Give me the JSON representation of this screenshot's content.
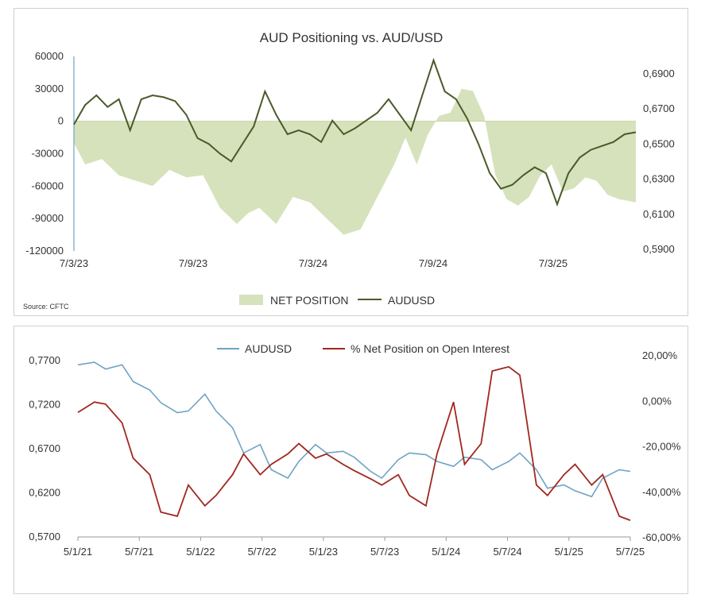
{
  "charts": {
    "top": {
      "title": "AUD Positioning vs. AUD/USD",
      "source": "Source: CFTC",
      "colors": {
        "net": "#d6e2bb",
        "audusd": "#4a5a2a"
      },
      "left_ticks": [
        "60000",
        "30000",
        "0",
        "-30000",
        "-60000",
        "-90000",
        "-120000"
      ],
      "right_ticks": [
        "0,6900",
        "0,6700",
        "0,6500",
        "0,6300",
        "0,6100",
        "0,5900"
      ],
      "x_ticks": [
        "7/3/23",
        "7/9/23",
        "7/3/24",
        "7/9/24",
        "7/3/25"
      ],
      "legend": {
        "net": "NET POSITION",
        "audusd": "AUDUSD"
      }
    },
    "bottom": {
      "colors": {
        "audusd": "#6fa3c4",
        "pct": "#a0281e"
      },
      "left_ticks": [
        "0,7700",
        "0,7200",
        "0,6700",
        "0,6200",
        "0,5700"
      ],
      "right_ticks": [
        "20,00%",
        "0,00%",
        "-20,00%",
        "-40,00%",
        "-60,00%"
      ],
      "x_ticks": [
        "5/1/21",
        "5/7/21",
        "5/1/22",
        "5/7/22",
        "5/1/23",
        "5/7/23",
        "5/1/24",
        "5/7/24",
        "5/1/25",
        "5/7/25"
      ],
      "legend": {
        "audusd": "AUDUSD",
        "pct": "% Net Position on Open Interest"
      }
    }
  },
  "chart_data": [
    {
      "type": "area+line",
      "title": "AUD Positioning vs. AUD/USD",
      "x_range": [
        "2023-03-07",
        "2025-06-10"
      ],
      "ylim_left": [
        -120000,
        60000
      ],
      "ylim_right": [
        0.59,
        0.69
      ],
      "series": [
        {
          "name": "NET POSITION",
          "axis": "left",
          "kind": "area",
          "x": [
            0,
            0.02,
            0.05,
            0.08,
            0.11,
            0.14,
            0.17,
            0.2,
            0.23,
            0.26,
            0.29,
            0.31,
            0.33,
            0.36,
            0.39,
            0.42,
            0.45,
            0.48,
            0.51,
            0.54,
            0.57,
            0.59,
            0.61,
            0.63,
            0.65,
            0.67,
            0.69,
            0.71,
            0.73,
            0.75,
            0.77,
            0.79,
            0.81,
            0.83,
            0.85,
            0.87,
            0.89,
            0.91,
            0.93,
            0.95,
            0.97,
            0.99,
            1.0
          ],
          "y": [
            -20000,
            -40000,
            -35000,
            -50000,
            -55000,
            -60000,
            -45000,
            -52000,
            -50000,
            -80000,
            -95000,
            -85000,
            -80000,
            -95000,
            -70000,
            -75000,
            -90000,
            -105000,
            -100000,
            -70000,
            -40000,
            -15000,
            -40000,
            -12000,
            5000,
            8000,
            30000,
            28000,
            5000,
            -50000,
            -72000,
            -78000,
            -70000,
            -50000,
            -40000,
            -65000,
            -62000,
            -52000,
            -55000,
            -68000,
            -72000,
            -74000,
            -75000
          ]
        },
        {
          "name": "AUDUSD",
          "axis": "right",
          "kind": "line",
          "x": [
            0,
            0.02,
            0.04,
            0.06,
            0.08,
            0.1,
            0.12,
            0.14,
            0.16,
            0.18,
            0.2,
            0.22,
            0.24,
            0.26,
            0.28,
            0.3,
            0.32,
            0.34,
            0.36,
            0.38,
            0.4,
            0.42,
            0.44,
            0.46,
            0.48,
            0.5,
            0.52,
            0.54,
            0.56,
            0.58,
            0.6,
            0.62,
            0.64,
            0.66,
            0.68,
            0.7,
            0.72,
            0.74,
            0.76,
            0.78,
            0.8,
            0.82,
            0.84,
            0.86,
            0.88,
            0.9,
            0.92,
            0.94,
            0.96,
            0.98,
            1.0
          ],
          "y": [
            0.655,
            0.665,
            0.67,
            0.664,
            0.668,
            0.652,
            0.668,
            0.67,
            0.669,
            0.667,
            0.66,
            0.648,
            0.645,
            0.64,
            0.636,
            0.645,
            0.654,
            0.672,
            0.66,
            0.65,
            0.652,
            0.65,
            0.646,
            0.657,
            0.65,
            0.653,
            0.657,
            0.661,
            0.668,
            0.66,
            0.652,
            0.67,
            0.688,
            0.672,
            0.668,
            0.658,
            0.645,
            0.63,
            0.622,
            0.624,
            0.629,
            0.633,
            0.63,
            0.614,
            0.63,
            0.638,
            0.642,
            0.644,
            0.646,
            0.65,
            0.651
          ]
        }
      ]
    },
    {
      "type": "line",
      "x_range": [
        "2021-01-05",
        "2025-06-10"
      ],
      "ylim_left": [
        0.57,
        0.78
      ],
      "ylim_right": [
        -0.6,
        0.25
      ],
      "series": [
        {
          "name": "AUDUSD",
          "axis": "left",
          "x": [
            0,
            0.03,
            0.05,
            0.08,
            0.1,
            0.13,
            0.15,
            0.18,
            0.2,
            0.23,
            0.25,
            0.28,
            0.3,
            0.33,
            0.35,
            0.38,
            0.4,
            0.43,
            0.45,
            0.48,
            0.5,
            0.53,
            0.55,
            0.58,
            0.6,
            0.63,
            0.65,
            0.68,
            0.7,
            0.73,
            0.75,
            0.78,
            0.8,
            0.83,
            0.85,
            0.88,
            0.9,
            0.93,
            0.95,
            0.98,
            1.0
          ],
          "y": [
            0.775,
            0.778,
            0.77,
            0.775,
            0.755,
            0.745,
            0.73,
            0.718,
            0.72,
            0.74,
            0.72,
            0.7,
            0.67,
            0.68,
            0.65,
            0.64,
            0.66,
            0.68,
            0.67,
            0.672,
            0.665,
            0.648,
            0.64,
            0.662,
            0.67,
            0.668,
            0.66,
            0.654,
            0.665,
            0.662,
            0.65,
            0.66,
            0.67,
            0.65,
            0.628,
            0.632,
            0.625,
            0.618,
            0.64,
            0.65,
            0.648
          ]
        },
        {
          "name": "% Net Position on Open Interest",
          "axis": "right",
          "x": [
            0,
            0.03,
            0.05,
            0.08,
            0.1,
            0.13,
            0.15,
            0.18,
            0.2,
            0.23,
            0.25,
            0.28,
            0.3,
            0.33,
            0.35,
            0.38,
            0.4,
            0.43,
            0.45,
            0.48,
            0.5,
            0.53,
            0.55,
            0.58,
            0.6,
            0.63,
            0.65,
            0.68,
            0.7,
            0.73,
            0.75,
            0.78,
            0.8,
            0.83,
            0.85,
            0.88,
            0.9,
            0.93,
            0.95,
            0.98,
            1.0
          ],
          "y": [
            0.0,
            0.05,
            0.04,
            -0.05,
            -0.22,
            -0.3,
            -0.48,
            -0.5,
            -0.35,
            -0.45,
            -0.4,
            -0.3,
            -0.2,
            -0.3,
            -0.25,
            -0.2,
            -0.15,
            -0.22,
            -0.2,
            -0.25,
            -0.28,
            -0.32,
            -0.35,
            -0.3,
            -0.4,
            -0.45,
            -0.2,
            0.05,
            -0.25,
            -0.15,
            0.2,
            0.22,
            0.18,
            -0.35,
            -0.4,
            -0.3,
            -0.25,
            -0.35,
            -0.3,
            -0.5,
            -0.52
          ]
        }
      ]
    }
  ]
}
